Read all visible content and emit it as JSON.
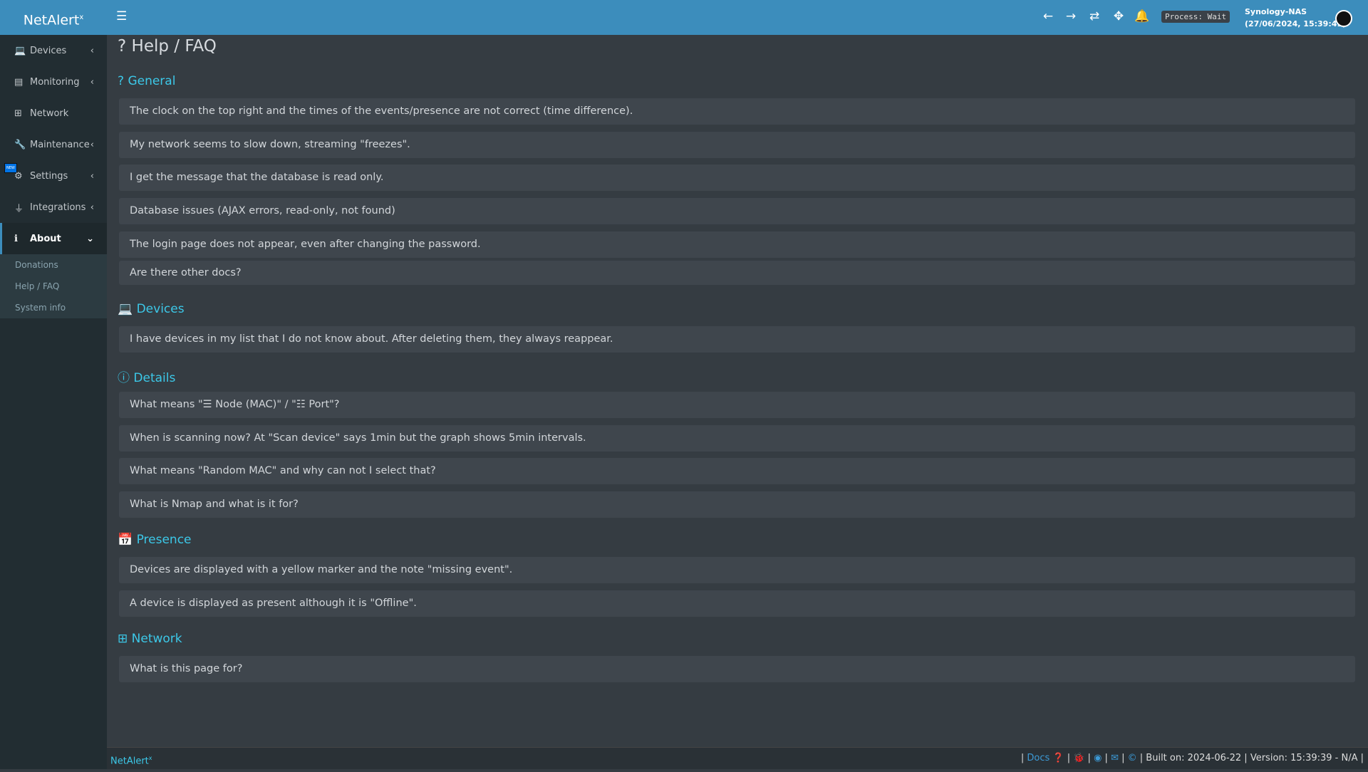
{
  "app": {
    "logo": "NetAlert",
    "logo_sup": "x"
  },
  "header": {
    "process": "Process: Wait",
    "host": "Synology-NAS",
    "datetime": "(27/06/2024, 15:39:41)",
    "icons": [
      "menu-icon",
      "arrow-left-icon",
      "arrow-right-icon",
      "refresh-icon",
      "arrows-move-icon",
      "bell-icon",
      "user-avatar-icon"
    ]
  },
  "sidebar": {
    "items": [
      {
        "label": "Devices",
        "icon": "laptop-icon"
      },
      {
        "label": "Monitoring",
        "icon": "chart-icon"
      },
      {
        "label": "Network",
        "icon": "sitemap-icon"
      },
      {
        "label": "Maintenance",
        "icon": "wrench-icon",
        "badge": "NEW"
      },
      {
        "label": "Settings",
        "icon": "gear-icon"
      },
      {
        "label": "Integrations",
        "icon": "plug-icon"
      },
      {
        "label": "About",
        "icon": "info-icon"
      }
    ],
    "sub": [
      "Donations",
      "Help / FAQ",
      "System info"
    ]
  },
  "page": {
    "title": "Help / FAQ"
  },
  "sections": [
    {
      "title": "General",
      "icon": "question-icon",
      "items": [
        "The clock on the top right and the times of the events/presence are not correct (time difference).",
        "My network seems to slow down, streaming \"freezes\".",
        "I get the message that the database is read only.",
        "Database issues (AJAX errors, read-only, not found)",
        "The login page does not appear, even after changing the password.",
        "Are there other docs?"
      ]
    },
    {
      "title": "Devices",
      "icon": "laptop-icon",
      "items": [
        "I have devices in my list that I do not know about. After deleting them, they always reappear."
      ]
    },
    {
      "title": "Details",
      "icon": "info-circle-icon",
      "items": [
        "What means \"☰ Node (MAC)\" / \"☷ Port\"?",
        "When is scanning now? At \"Scan device\" says 1min but the graph shows 5min intervals.",
        "What means \"Random MAC\" and why can not I select that?",
        "What is Nmap and what is it for?"
      ]
    },
    {
      "title": "Presence",
      "icon": "calendar-icon",
      "items": [
        "Devices are displayed with a yellow marker and the note \"missing event\".",
        "A device is displayed as present although it is \"Offline\"."
      ]
    },
    {
      "title": "Network",
      "icon": "sitemap-icon",
      "items": [
        "What is this page for?"
      ]
    }
  ],
  "footer": {
    "logo": "NetAlert",
    "logo_sup": "x",
    "docs": "Docs",
    "built": "Built on: 2024-06-22",
    "version": "Version: 15:39:39 - N/A"
  }
}
